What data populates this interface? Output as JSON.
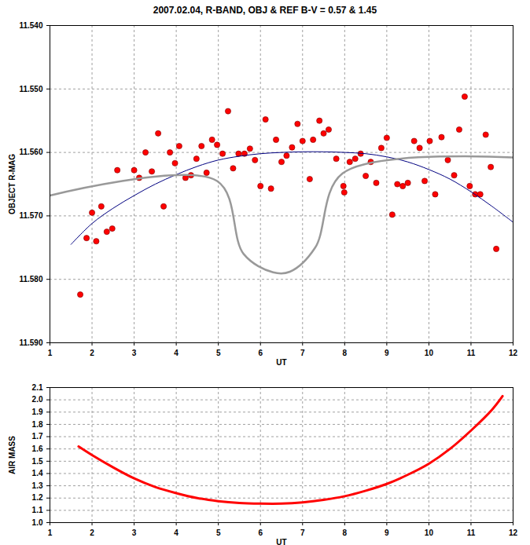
{
  "chart_data": [
    {
      "type": "scatter",
      "title": "2007.02.04, R-BAND, OBJ & REF B-V = 0.57 & 1.45",
      "xlabel": "UT",
      "ylabel": "OBJECT R-MAG",
      "xlim": [
        1,
        12
      ],
      "xticks": [
        1,
        2,
        3,
        4,
        5,
        6,
        7,
        8,
        9,
        10,
        11,
        12
      ],
      "ylim": [
        11.59,
        11.54
      ],
      "yticks": [
        {
          "value": 11.54,
          "label": "11.540"
        },
        {
          "value": 11.55,
          "label": "11.550"
        },
        {
          "value": 11.56,
          "label": "11.560"
        },
        {
          "value": 11.57,
          "label": "11.570"
        },
        {
          "value": 11.58,
          "label": "11.580"
        },
        {
          "value": 11.59,
          "label": "11.590"
        }
      ],
      "grid": true,
      "series": [
        {
          "type": "scatter",
          "color": "#ff0000",
          "marker": "circle",
          "x": [
            1.72,
            1.87,
            2.0,
            2.1,
            2.22,
            2.35,
            2.48,
            2.6,
            3.0,
            3.12,
            3.27,
            3.42,
            3.57,
            3.7,
            3.85,
            3.97,
            4.07,
            4.22,
            4.35,
            4.48,
            4.6,
            4.72,
            4.85,
            4.97,
            5.1,
            5.23,
            5.35,
            5.48,
            5.62,
            5.75,
            5.87,
            6.0,
            6.12,
            6.25,
            6.37,
            6.5,
            6.62,
            6.75,
            6.88,
            7.0,
            7.17,
            7.25,
            7.4,
            7.5,
            7.62,
            7.8,
            7.97,
            7.99,
            8.12,
            8.25,
            8.38,
            8.5,
            8.62,
            8.75,
            8.87,
            9.0,
            9.13,
            9.25,
            9.38,
            9.5,
            9.65,
            9.78,
            9.9,
            10.02,
            10.15,
            10.3,
            10.45,
            10.6,
            10.72,
            10.85,
            10.97,
            11.1,
            11.22,
            11.35,
            11.47,
            11.6
          ],
          "values": [
            11.5824,
            11.5735,
            11.5695,
            11.574,
            11.5685,
            11.5725,
            11.572,
            11.5628,
            11.5628,
            11.564,
            11.56,
            11.563,
            11.557,
            11.5685,
            11.56,
            11.5617,
            11.559,
            11.564,
            11.5636,
            11.561,
            11.559,
            11.5632,
            11.558,
            11.5588,
            11.5602,
            11.5535,
            11.5625,
            11.5602,
            11.5602,
            11.5594,
            11.5612,
            11.5653,
            11.5548,
            11.5657,
            11.558,
            11.5615,
            11.5605,
            11.5592,
            11.5555,
            11.5582,
            11.5642,
            11.558,
            11.555,
            11.557,
            11.5564,
            11.561,
            11.5653,
            11.5663,
            11.5615,
            11.561,
            11.5602,
            11.5637,
            11.5615,
            11.5648,
            11.5593,
            11.5577,
            11.5698,
            11.565,
            11.5653,
            11.5648,
            11.5582,
            11.5593,
            11.5645,
            11.5582,
            11.5666,
            11.5576,
            11.5612,
            11.5636,
            11.5564,
            11.5512,
            11.5653,
            11.5666,
            11.5666,
            11.5572,
            11.5623,
            11.5752
          ]
        },
        {
          "type": "line",
          "color": "#000080",
          "x": [
            1.5,
            2,
            2.5,
            3,
            3.5,
            4,
            4.5,
            5,
            5.5,
            6,
            6.5,
            7,
            7.5,
            8,
            8.5,
            9,
            9.5,
            10,
            10.5,
            11,
            11.5,
            12
          ],
          "values": [
            11.5745,
            11.5712,
            11.5688,
            11.5668,
            11.565,
            11.5635,
            11.5622,
            11.5612,
            11.5606,
            11.5602,
            11.56,
            11.5599,
            11.5599,
            11.56,
            11.5602,
            11.5607,
            11.5615,
            11.5627,
            11.5642,
            11.5662,
            11.5685,
            11.571
          ]
        },
        {
          "type": "line",
          "color": "#999999",
          "x": [
            1,
            4.97,
            5.6,
            6.3,
            6.7,
            7.3,
            7.95,
            12
          ],
          "values": [
            11.5668,
            11.5645,
            11.576,
            11.5789,
            11.5788,
            11.575,
            11.5633,
            11.5608
          ]
        }
      ]
    },
    {
      "type": "line",
      "xlabel": "UT",
      "ylabel": "AIR MASS",
      "xlim": [
        1,
        12
      ],
      "xticks": [
        1,
        2,
        3,
        4,
        5,
        6,
        7,
        8,
        9,
        10,
        11,
        12
      ],
      "ylim": [
        1.0,
        2.1
      ],
      "yticks": [
        {
          "value": 1.0,
          "label": "1.0"
        },
        1.1,
        1.2,
        1.3,
        1.4,
        1.5,
        1.6,
        1.7,
        1.8,
        1.9,
        {
          "value": 2.0,
          "label": "2.0"
        },
        2.1
      ],
      "grid": true,
      "series": [
        {
          "type": "line",
          "color": "#ff0000",
          "x": [
            1.68,
            2,
            2.5,
            3,
            3.5,
            4,
            4.5,
            5,
            5.5,
            6,
            6.5,
            7,
            7.5,
            8,
            8.5,
            9,
            9.5,
            10,
            10.5,
            11,
            11.5,
            11.75
          ],
          "values": [
            1.62,
            1.55,
            1.45,
            1.36,
            1.29,
            1.24,
            1.2,
            1.175,
            1.16,
            1.155,
            1.155,
            1.165,
            1.185,
            1.215,
            1.26,
            1.315,
            1.39,
            1.48,
            1.6,
            1.75,
            1.92,
            2.03
          ]
        }
      ]
    }
  ]
}
